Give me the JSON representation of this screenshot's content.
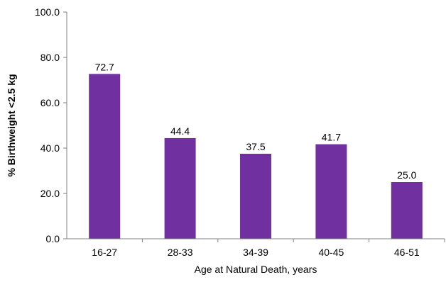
{
  "chart_data": {
    "type": "bar",
    "categories": [
      "16-27",
      "28-33",
      "34-39",
      "40-45",
      "46-51"
    ],
    "values": [
      72.7,
      44.4,
      37.5,
      41.7,
      25.0
    ],
    "data_labels": [
      "72.7",
      "44.4",
      "37.5",
      "41.7",
      "25.0"
    ],
    "title": "",
    "xlabel": "Age at Natural Death, years",
    "ylabel": "% Birthweight <2.5 kg",
    "ylim": [
      0,
      100
    ],
    "yticks": [
      "0.0",
      "20.0",
      "40.0",
      "60.0",
      "80.0",
      "100.0"
    ],
    "ytick_values": [
      0,
      20,
      40,
      60,
      80,
      100
    ],
    "grid": false,
    "legend": "none",
    "bar_color": "#7030A0"
  }
}
